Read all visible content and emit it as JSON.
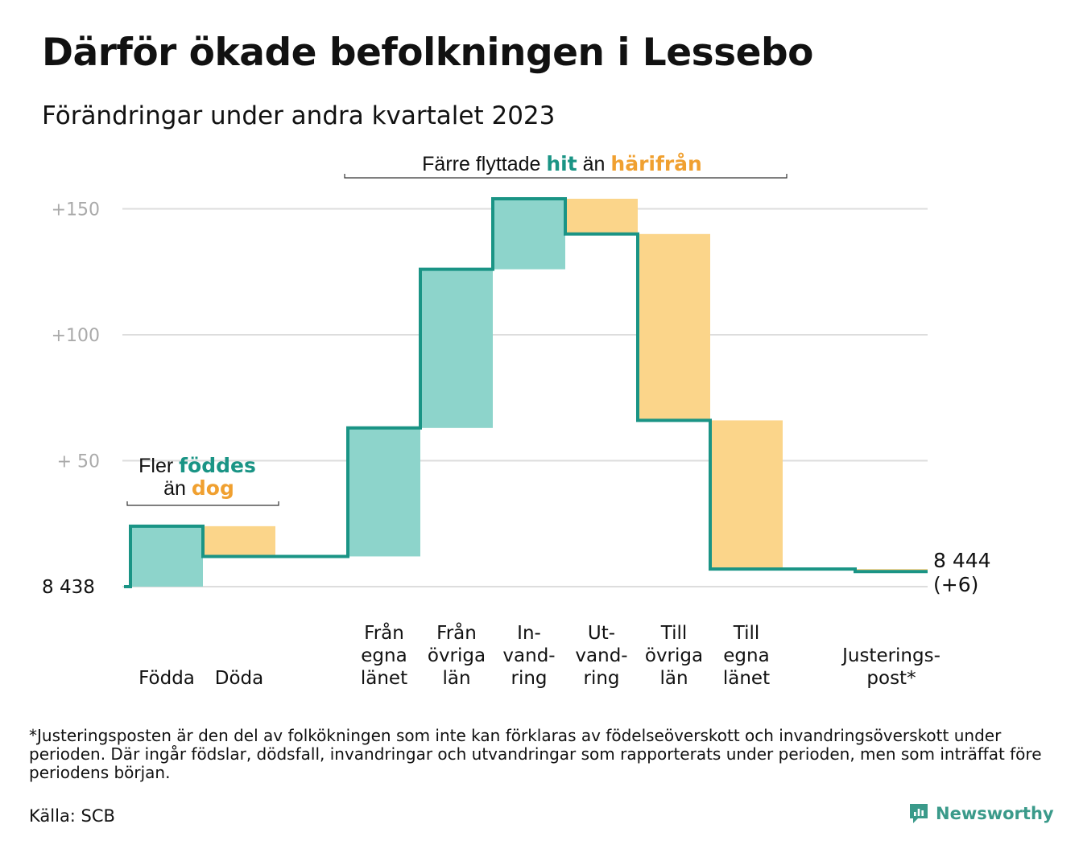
{
  "header": {
    "title": "Därför ökade befolkningen i Lessebo",
    "subtitle": "Förändringar under andra kvartalet 2023"
  },
  "annotations": {
    "births": {
      "pre": "Fler",
      "hl1": "föddes",
      "mid": "än",
      "hl2": "dog"
    },
    "moves": {
      "pre": "Färre flyttade",
      "hl1": "hit",
      "mid": "än",
      "hl2": "härifrån"
    }
  },
  "end_label": {
    "line1": "8 444",
    "line2": "(+6)"
  },
  "footnote": "*Justeringsposten är den del av folkökningen som inte kan förklaras av födelseöverskott och invandringsöverskott under perioden. Där ingår födslar, dödsfall, invandringar och utvandringar som rapporterats under perioden, men som inträffat före periodens början.",
  "source": "Källa: SCB",
  "brand": {
    "name": "Newsworthy",
    "icon": "newsworthy-logo-icon"
  },
  "colors": {
    "increase": "#8dd4cb",
    "decrease": "#fbd58a",
    "line": "#1a9485",
    "teal_text": "#1a9485",
    "orange_text": "#f0a030",
    "grid": "#dddddd",
    "tick_text": "#aaaaaa"
  },
  "chart_data": {
    "type": "waterfall",
    "base_label": "8  438",
    "start_value": 8438,
    "end_value": 8444,
    "y_ticks": [
      {
        "value": 50,
        "label": "+  50"
      },
      {
        "value": 100,
        "label": "+100"
      },
      {
        "value": 150,
        "label": "+150"
      }
    ],
    "ylim": [
      0,
      150
    ],
    "grid": true,
    "steps": [
      {
        "label": [
          "Födda"
        ],
        "change": 24
      },
      {
        "label": [
          "Döda"
        ],
        "change": -12
      },
      {
        "label": [],
        "change": 0
      },
      {
        "label": [
          "Från",
          "egna",
          "länet"
        ],
        "change": 51
      },
      {
        "label": [
          "Från",
          "övriga",
          "län"
        ],
        "change": 63
      },
      {
        "label": [
          "In-",
          "vand-",
          "ring"
        ],
        "change": 28
      },
      {
        "label": [
          "Ut-",
          "vand-",
          "ring"
        ],
        "change": -14
      },
      {
        "label": [
          "Till",
          "övriga",
          "län"
        ],
        "change": -74
      },
      {
        "label": [
          "Till",
          "egna",
          "länet"
        ],
        "change": -59
      },
      {
        "label": [],
        "change": 0
      },
      {
        "label": [
          "Justerings-",
          "post*"
        ],
        "change": -1
      }
    ]
  }
}
